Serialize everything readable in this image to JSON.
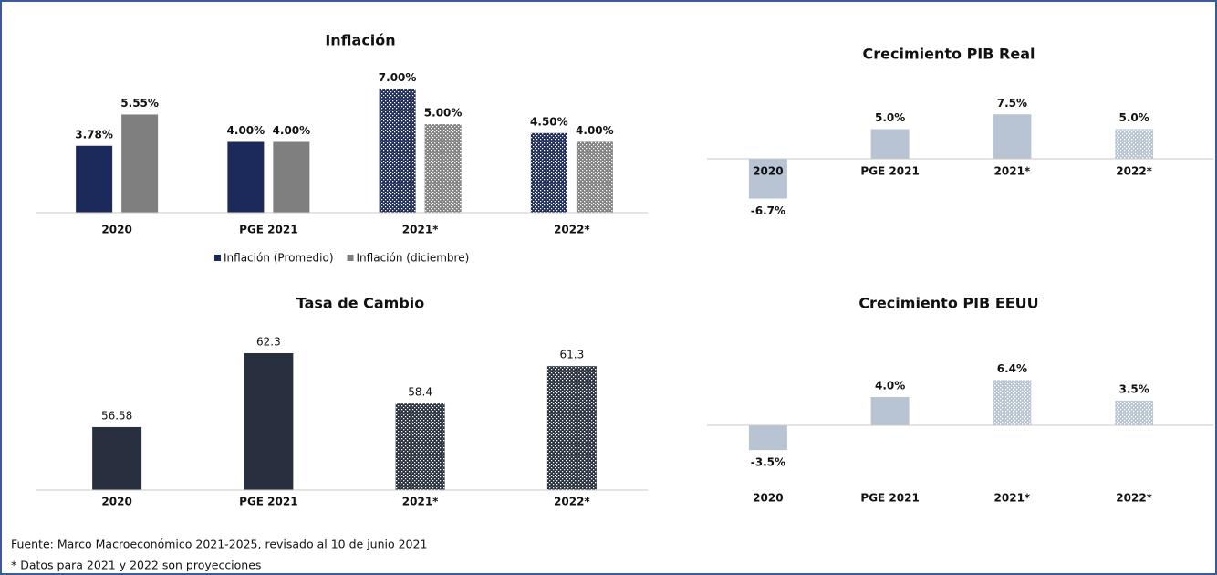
{
  "chart_data": [
    {
      "type": "bar",
      "title": "Inflación",
      "categories": [
        "2020",
        "PGE 2021",
        "2021*",
        "2022*"
      ],
      "series": [
        {
          "name": "Inflación (Promedio)",
          "color": "#1b2a5a",
          "values": [
            3.78,
            4.0,
            7.0,
            4.5
          ],
          "value_labels": [
            "3.78%",
            "4.00%",
            "7.00%",
            "4.50%"
          ],
          "hatched": [
            false,
            false,
            true,
            true
          ]
        },
        {
          "name": "Inflación (diciembre)",
          "color": "#7f7f7f",
          "values": [
            5.55,
            4.0,
            5.0,
            4.0
          ],
          "value_labels": [
            "5.55%",
            "4.00%",
            "5.00%",
            "4.00%"
          ],
          "hatched": [
            false,
            false,
            true,
            true
          ]
        }
      ],
      "ylim": [
        0,
        8
      ],
      "legend": "bottom"
    },
    {
      "type": "bar",
      "title": "Crecimiento PIB Real",
      "categories": [
        "2020",
        "PGE 2021",
        "2021*",
        "2022*"
      ],
      "values": [
        -6.7,
        5.0,
        7.5,
        5.0
      ],
      "value_labels": [
        "-6.7%",
        "5.0%",
        "7.5%",
        "5.0%"
      ],
      "color": "#b8c4d4",
      "hatched": [
        false,
        false,
        false,
        true
      ],
      "ylim": [
        -10,
        10
      ]
    },
    {
      "type": "bar",
      "title": "Tasa de Cambio",
      "categories": [
        "2020",
        "PGE 2021",
        "2021*",
        "2022*"
      ],
      "values": [
        56.58,
        62.3,
        58.4,
        61.3
      ],
      "color": "#283040",
      "hatched": [
        false,
        false,
        true,
        true
      ],
      "ylim": [
        51.7,
        63.5
      ]
    },
    {
      "type": "bar",
      "title": "Crecimiento PIB EEUU",
      "categories": [
        "2020",
        "PGE 2021",
        "2021*",
        "2022*"
      ],
      "values": [
        -3.5,
        4.0,
        6.4,
        3.5
      ],
      "value_labels": [
        "-3.5%",
        "4.0%",
        "6.4%",
        "3.5%"
      ],
      "color": "#b8c4d4",
      "hatched": [
        false,
        false,
        true,
        true
      ],
      "ylim": [
        -8,
        8
      ]
    }
  ],
  "source": "Fuente: Marco Macroeconómico 2021-2025, revisado al 10 de junio 2021",
  "footnote": "* Datos para 2021 y 2022 son proyecciones"
}
